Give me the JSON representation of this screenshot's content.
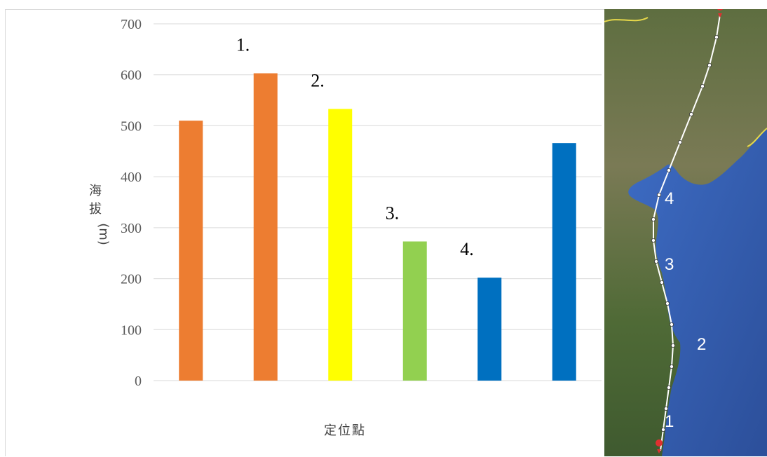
{
  "chart_data": {
    "type": "bar",
    "title": "",
    "xlabel": "定位點",
    "ylabel_chars": [
      "海",
      "拔",
      "(m)"
    ],
    "ylim": [
      0,
      700
    ],
    "yticks": [
      0,
      100,
      200,
      300,
      400,
      500,
      600,
      700
    ],
    "grid": true,
    "values": [
      510,
      603,
      533,
      273,
      202,
      466
    ],
    "colors": [
      "#ed7d31",
      "#ed7d31",
      "#ffff00",
      "#92d050",
      "#0070c0",
      "#0070c0"
    ],
    "annotations": [
      {
        "text": "1.",
        "bar_index": 1
      },
      {
        "text": "2.",
        "bar_index": 2
      },
      {
        "text": "3.",
        "bar_index": 3
      },
      {
        "text": "4.",
        "bar_index": 4
      }
    ]
  },
  "map": {
    "labels": [
      "1",
      "2",
      "3",
      "4"
    ],
    "colors": {
      "land": "#4a6a3a",
      "sea": "#3c64b4",
      "route": "#ffffff",
      "border": "#e6d84a"
    }
  }
}
